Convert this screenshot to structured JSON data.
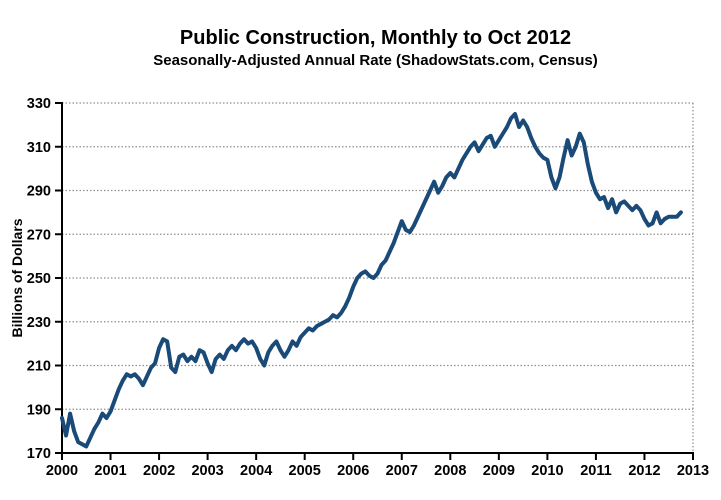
{
  "colors": {
    "line": "#1a4a77",
    "grid": "#8f8f8f",
    "axis": "#000000",
    "background": "#ffffff",
    "text": "#000000"
  },
  "chart_data": {
    "type": "line",
    "title": "Public Construction, Monthly to Oct 2012",
    "subtitle": "Seasonally-Adjusted Annual Rate (ShadowStats.com, Census)",
    "ylabel": "Billions of Dollars",
    "xlabel": "",
    "legend_position": "none",
    "grid": "horizontal-dotted",
    "xlim": [
      2000,
      2013
    ],
    "ylim": [
      170,
      330
    ],
    "y_ticks": [
      170,
      190,
      210,
      230,
      250,
      270,
      290,
      310,
      330
    ],
    "x_ticks": [
      2000,
      2001,
      2002,
      2003,
      2004,
      2005,
      2006,
      2007,
      2008,
      2009,
      2010,
      2011,
      2012,
      2013
    ],
    "x_tick_labels": [
      "2000",
      "2001",
      "2002",
      "2003",
      "2004",
      "2005",
      "2006",
      "2007",
      "2008",
      "2009",
      "2010",
      "2011",
      "2012",
      "2013"
    ],
    "series": [
      {
        "name": "Public Construction",
        "color": "#1a4a77",
        "frequency": "monthly",
        "start": "2000-01",
        "end": "2012-10",
        "values": [
          186,
          178,
          188,
          180,
          175,
          174,
          173,
          177,
          181,
          184,
          188,
          186,
          189,
          194,
          199,
          203,
          206,
          205,
          206,
          204,
          201,
          205,
          209,
          211,
          218,
          222,
          221,
          209,
          207,
          214,
          215,
          212,
          214,
          212,
          217,
          216,
          211,
          207,
          213,
          215,
          213,
          217,
          219,
          217,
          220,
          222,
          220,
          221,
          218,
          213,
          210,
          216,
          219,
          221,
          217,
          214,
          217,
          221,
          219,
          223,
          225,
          227,
          226,
          228,
          229,
          230,
          231,
          233,
          232,
          234,
          237,
          241,
          246,
          250,
          252,
          253,
          251,
          250,
          252,
          256,
          258,
          262,
          266,
          271,
          276,
          272,
          271,
          274,
          278,
          282,
          286,
          290,
          294,
          289,
          292,
          296,
          298,
          296,
          300,
          304,
          307,
          310,
          312,
          308,
          311,
          314,
          315,
          310,
          313,
          316,
          319,
          323,
          325,
          319,
          322,
          319,
          314,
          310,
          307,
          305,
          304,
          296,
          291,
          296,
          305,
          313,
          306,
          310,
          316,
          312,
          302,
          294,
          289,
          286,
          287,
          282,
          286,
          280,
          284,
          285,
          283,
          281,
          283,
          281,
          277,
          274,
          275,
          280,
          275,
          277,
          278,
          278,
          278,
          280
        ]
      }
    ]
  }
}
